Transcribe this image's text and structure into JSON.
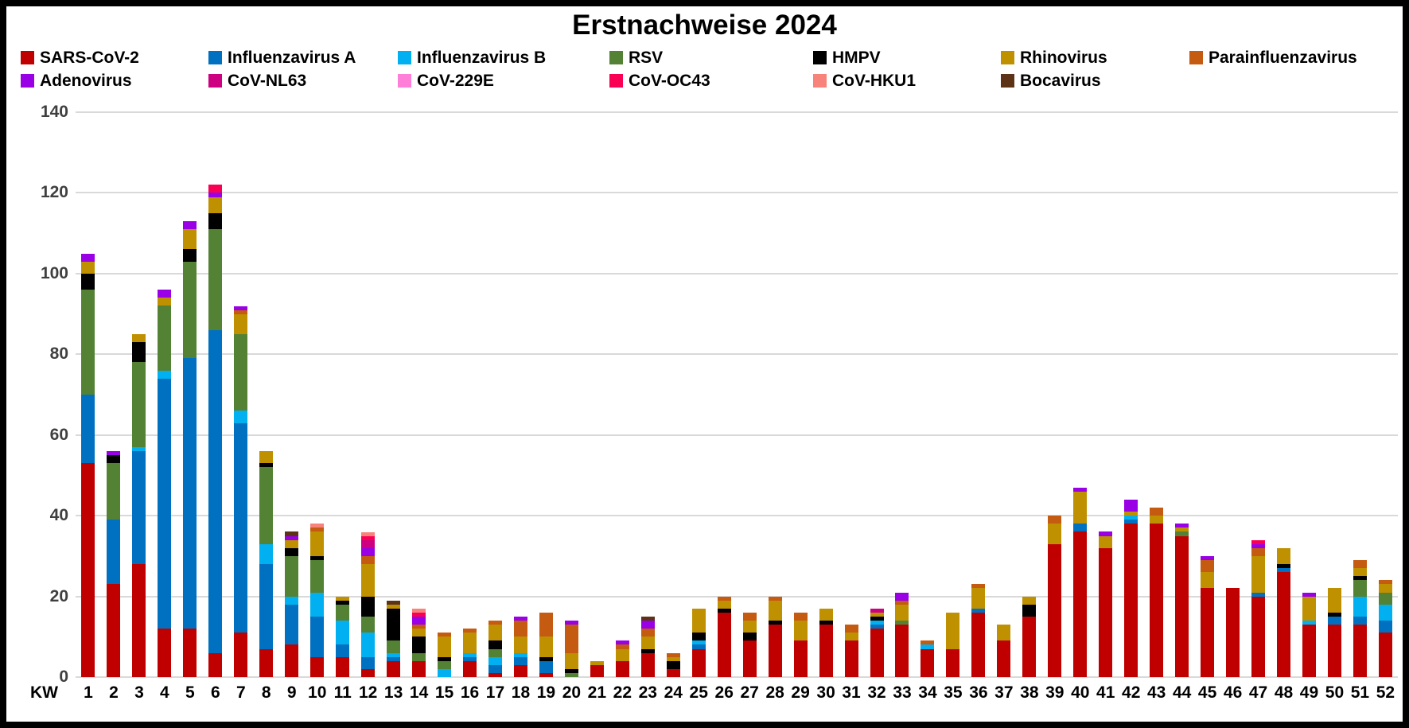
{
  "chart_data": {
    "type": "bar",
    "stacked": true,
    "title": "Erstnachweise 2024",
    "x_prefix": "KW",
    "xlabel": "",
    "ylabel": "",
    "ylim": [
      0,
      140
    ],
    "yticks": [
      0,
      20,
      40,
      60,
      80,
      100,
      120,
      140
    ],
    "grid": true,
    "gridline_color": "#D9D9D9",
    "axis_label_color": "#3F3F3F",
    "legend_position": "top",
    "categories": [
      1,
      2,
      3,
      4,
      5,
      6,
      7,
      8,
      9,
      10,
      11,
      12,
      13,
      14,
      15,
      16,
      17,
      18,
      19,
      20,
      21,
      22,
      23,
      24,
      25,
      26,
      27,
      28,
      29,
      30,
      31,
      32,
      33,
      34,
      35,
      36,
      37,
      38,
      39,
      40,
      41,
      42,
      43,
      44,
      45,
      46,
      47,
      48,
      49,
      50,
      51,
      52
    ],
    "series": [
      {
        "name": "SARS-CoV-2",
        "color": "#C00000",
        "values": [
          53,
          23,
          28,
          12,
          12,
          6,
          11,
          7,
          8,
          5,
          5,
          2,
          4,
          4,
          0,
          4,
          1,
          3,
          1,
          0,
          3,
          4,
          6,
          2,
          7,
          16,
          9,
          13,
          9,
          13,
          9,
          12,
          13,
          7,
          7,
          16,
          9,
          15,
          33,
          36,
          32,
          38,
          38,
          35,
          22,
          22,
          20,
          26,
          13,
          13,
          13,
          11
        ]
      },
      {
        "name": "Influenzavirus A",
        "color": "#0070C0",
        "values": [
          17,
          16,
          28,
          62,
          67,
          80,
          52,
          21,
          10,
          10,
          3,
          3,
          1,
          0,
          0,
          1,
          2,
          2,
          3,
          0,
          0,
          0,
          0,
          0,
          1,
          0,
          0,
          0,
          0,
          0,
          0,
          1,
          0,
          0,
          0,
          1,
          0,
          0,
          0,
          2,
          0,
          1,
          0,
          0,
          0,
          0,
          1,
          1,
          0,
          2,
          2,
          3
        ]
      },
      {
        "name": "Influenzavirus B",
        "color": "#00B0F0",
        "values": [
          0,
          0,
          1,
          2,
          0,
          0,
          3,
          5,
          2,
          6,
          6,
          6,
          1,
          0,
          2,
          1,
          2,
          1,
          0,
          0,
          0,
          0,
          0,
          0,
          1,
          0,
          0,
          0,
          0,
          0,
          0,
          1,
          0,
          1,
          0,
          0,
          0,
          0,
          0,
          0,
          0,
          1,
          0,
          0,
          0,
          0,
          0,
          0,
          1,
          0,
          5,
          4
        ]
      },
      {
        "name": "RSV",
        "color": "#548235",
        "values": [
          26,
          14,
          21,
          16,
          24,
          25,
          19,
          19,
          10,
          8,
          4,
          4,
          3,
          2,
          2,
          0,
          2,
          0,
          0,
          1,
          0,
          0,
          0,
          0,
          0,
          0,
          0,
          0,
          0,
          0,
          0,
          0,
          1,
          0,
          0,
          0,
          0,
          0,
          0,
          0,
          0,
          0,
          0,
          1,
          0,
          0,
          0,
          0,
          0,
          0,
          4,
          3
        ]
      },
      {
        "name": "HMPV",
        "color": "#000000",
        "values": [
          4,
          2,
          5,
          0,
          3,
          4,
          0,
          1,
          2,
          1,
          1,
          5,
          8,
          4,
          1,
          0,
          2,
          0,
          1,
          1,
          0,
          0,
          1,
          2,
          2,
          1,
          2,
          1,
          0,
          1,
          0,
          1,
          0,
          0,
          0,
          0,
          0,
          3,
          0,
          0,
          0,
          0,
          0,
          0,
          0,
          0,
          0,
          1,
          0,
          1,
          1,
          0
        ]
      },
      {
        "name": "Rhinovirus",
        "color": "#BF9000",
        "values": [
          3,
          0,
          2,
          2,
          5,
          4,
          5,
          3,
          2,
          6,
          1,
          8,
          1,
          2,
          5,
          5,
          4,
          4,
          5,
          4,
          1,
          3,
          3,
          1,
          6,
          2,
          3,
          5,
          5,
          3,
          2,
          1,
          4,
          0,
          9,
          5,
          4,
          2,
          5,
          8,
          3,
          1,
          2,
          1,
          4,
          0,
          9,
          4,
          6,
          6,
          2,
          2
        ]
      },
      {
        "name": "Parainfluenzavirus",
        "color": "#C55A11",
        "values": [
          0,
          0,
          0,
          0,
          0,
          0,
          1,
          0,
          0,
          1,
          0,
          2,
          0,
          1,
          1,
          1,
          1,
          4,
          6,
          7,
          0,
          1,
          2,
          1,
          0,
          1,
          2,
          1,
          2,
          0,
          2,
          0,
          1,
          1,
          0,
          1,
          0,
          0,
          2,
          0,
          0,
          0,
          2,
          0,
          3,
          0,
          2,
          0,
          0,
          0,
          2,
          1
        ]
      },
      {
        "name": "Adenovirus",
        "color": "#9900E6",
        "values": [
          2,
          1,
          0,
          2,
          2,
          1,
          1,
          0,
          1,
          0,
          0,
          2,
          0,
          2,
          0,
          0,
          0,
          1,
          0,
          1,
          0,
          1,
          2,
          0,
          0,
          0,
          0,
          0,
          0,
          0,
          0,
          0,
          2,
          0,
          0,
          0,
          0,
          0,
          0,
          1,
          1,
          3,
          0,
          1,
          1,
          0,
          1,
          0,
          1,
          0,
          0,
          0
        ]
      },
      {
        "name": "CoV-NL63",
        "color": "#CC0080",
        "values": [
          0,
          0,
          0,
          0,
          0,
          0,
          0,
          0,
          0,
          0,
          0,
          2,
          0,
          0,
          0,
          0,
          0,
          0,
          0,
          0,
          0,
          0,
          0,
          0,
          0,
          0,
          0,
          0,
          0,
          0,
          0,
          1,
          0,
          0,
          0,
          0,
          0,
          0,
          0,
          0,
          0,
          0,
          0,
          0,
          0,
          0,
          0,
          0,
          0,
          0,
          0,
          0
        ]
      },
      {
        "name": "CoV-229E",
        "color": "#FF7ED7",
        "values": [
          0,
          0,
          0,
          0,
          0,
          0,
          0,
          0,
          0,
          0,
          0,
          0,
          0,
          0,
          0,
          0,
          0,
          0,
          0,
          0,
          0,
          0,
          0,
          0,
          0,
          0,
          0,
          0,
          0,
          0,
          0,
          0,
          0,
          0,
          0,
          0,
          0,
          0,
          0,
          0,
          0,
          0,
          0,
          0,
          0,
          0,
          0,
          0,
          0,
          0,
          0,
          0
        ]
      },
      {
        "name": "CoV-OC43",
        "color": "#FA0055",
        "values": [
          0,
          0,
          0,
          0,
          0,
          2,
          0,
          0,
          0,
          0,
          0,
          1,
          0,
          1,
          0,
          0,
          0,
          0,
          0,
          0,
          0,
          0,
          0,
          0,
          0,
          0,
          0,
          0,
          0,
          0,
          0,
          0,
          0,
          0,
          0,
          0,
          0,
          0,
          0,
          0,
          0,
          0,
          0,
          0,
          0,
          0,
          1,
          0,
          0,
          0,
          0,
          0
        ]
      },
      {
        "name": "CoV-HKU1",
        "color": "#F8837A",
        "values": [
          0,
          0,
          0,
          0,
          0,
          0,
          0,
          0,
          0,
          1,
          0,
          1,
          0,
          1,
          0,
          0,
          0,
          0,
          0,
          0,
          0,
          0,
          0,
          0,
          0,
          0,
          0,
          0,
          0,
          0,
          0,
          0,
          0,
          0,
          0,
          0,
          0,
          0,
          0,
          0,
          0,
          0,
          0,
          0,
          0,
          0,
          0,
          0,
          0,
          0,
          0,
          0
        ]
      },
      {
        "name": "Bocavirus",
        "color": "#5C3317",
        "values": [
          0,
          0,
          0,
          0,
          0,
          0,
          0,
          0,
          1,
          0,
          0,
          0,
          1,
          0,
          0,
          0,
          0,
          0,
          0,
          0,
          0,
          0,
          1,
          0,
          0,
          0,
          0,
          0,
          0,
          0,
          0,
          0,
          0,
          0,
          0,
          0,
          0,
          0,
          0,
          0,
          0,
          0,
          0,
          0,
          0,
          0,
          0,
          0,
          0,
          0,
          0,
          0
        ]
      }
    ]
  }
}
